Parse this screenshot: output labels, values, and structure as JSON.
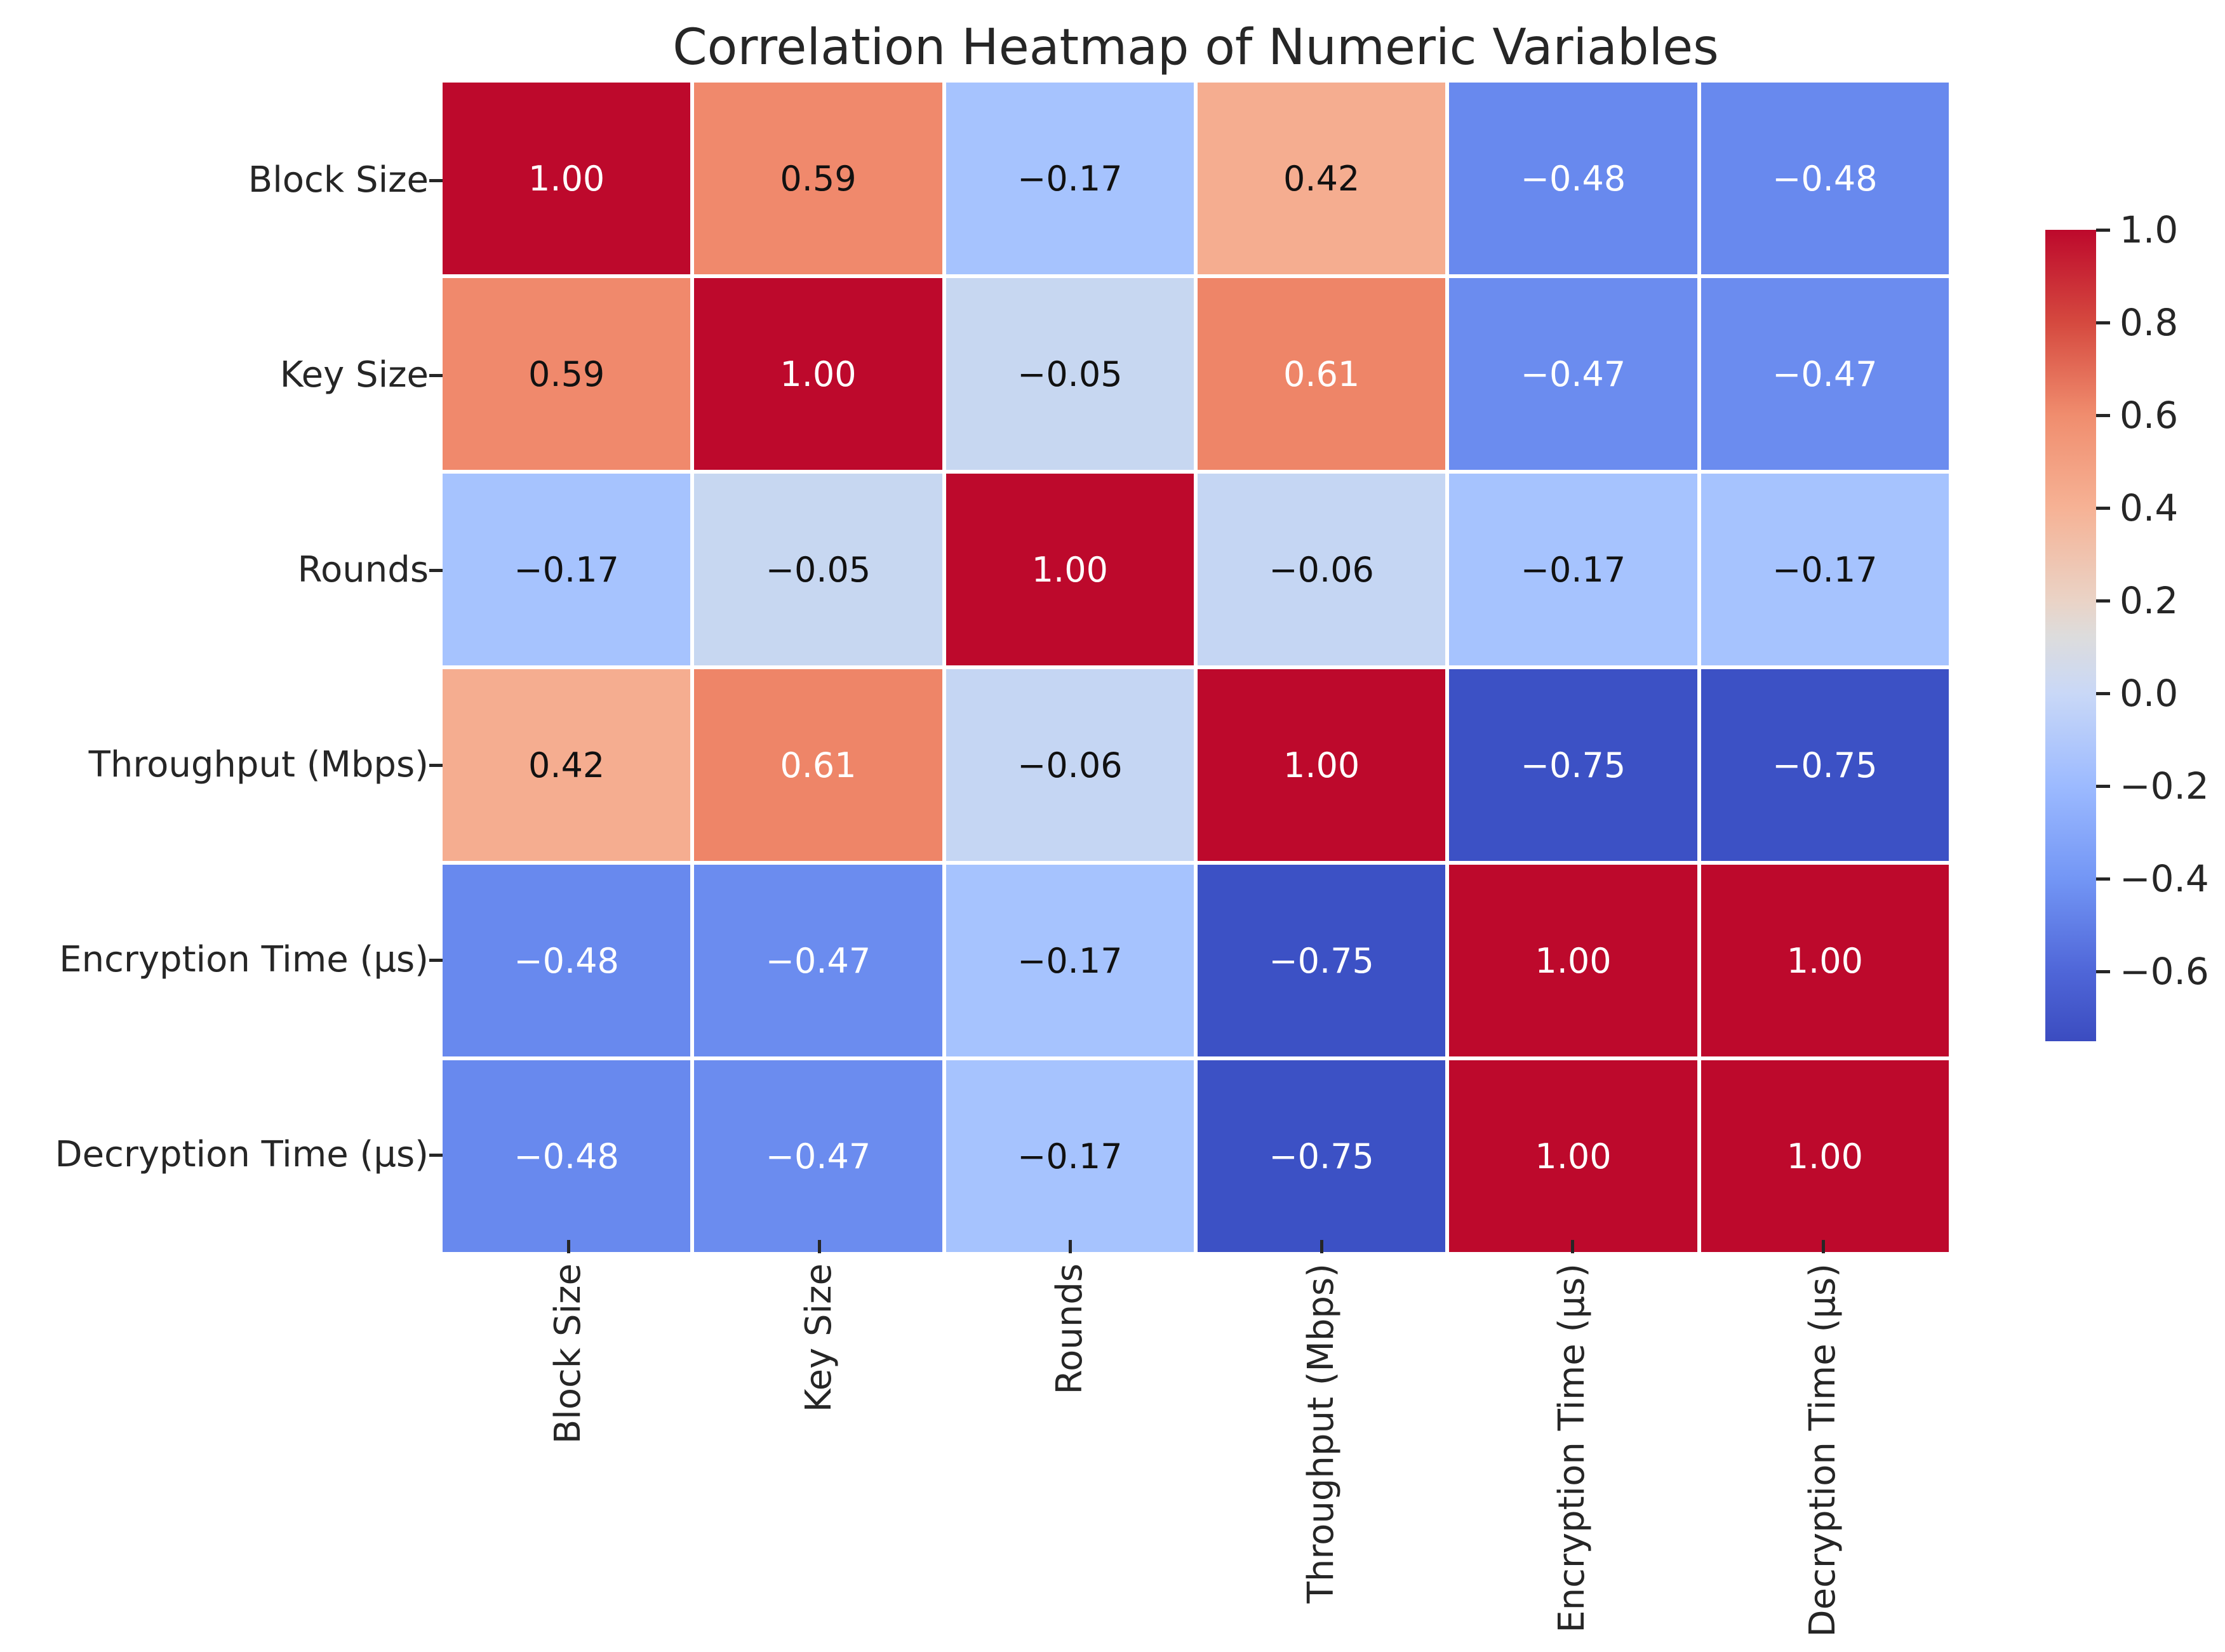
{
  "chart_data": {
    "type": "heatmap",
    "title": "Correlation Heatmap of Numeric Variables",
    "row_labels": [
      "Block Size",
      "Key Size",
      "Rounds",
      "Throughput (Mbps)",
      "Encryption Time (μs)",
      "Decryption Time (μs)"
    ],
    "col_labels": [
      "Block Size",
      "Key Size",
      "Rounds",
      "Throughput (Mbps)",
      "Encryption Time (μs)",
      "Decryption Time (μs)"
    ],
    "matrix": [
      [
        1.0,
        0.59,
        -0.17,
        0.42,
        -0.48,
        -0.48
      ],
      [
        0.59,
        1.0,
        -0.05,
        0.61,
        -0.47,
        -0.47
      ],
      [
        -0.17,
        -0.05,
        1.0,
        -0.06,
        -0.17,
        -0.17
      ],
      [
        0.42,
        0.61,
        -0.06,
        1.0,
        -0.75,
        -0.75
      ],
      [
        -0.48,
        -0.47,
        -0.17,
        -0.75,
        1.0,
        1.0
      ],
      [
        -0.48,
        -0.47,
        -0.17,
        -0.75,
        1.0,
        1.0
      ]
    ],
    "annotations": [
      [
        "1.00",
        "0.59",
        "−0.17",
        "0.42",
        "−0.48",
        "−0.48"
      ],
      [
        "0.59",
        "1.00",
        "−0.05",
        "0.61",
        "−0.47",
        "−0.47"
      ],
      [
        "−0.17",
        "−0.05",
        "1.00",
        "−0.06",
        "−0.17",
        "−0.17"
      ],
      [
        "0.42",
        "0.61",
        "−0.06",
        "1.00",
        "−0.75",
        "−0.75"
      ],
      [
        "−0.48",
        "−0.47",
        "−0.17",
        "−0.75",
        "1.00",
        "1.00"
      ],
      [
        "−0.48",
        "−0.47",
        "−0.17",
        "−0.75",
        "1.00",
        "1.00"
      ]
    ],
    "cell_colors": [
      [
        "#bd092c",
        "#f0896c",
        "#a6c3fe",
        "#f5ad90",
        "#6889ee",
        "#6889ee"
      ],
      [
        "#f0896c",
        "#bd092c",
        "#c7d7f1",
        "#ee8568",
        "#6b8cef",
        "#6b8cef"
      ],
      [
        "#a6c3fe",
        "#c7d7f1",
        "#bd092c",
        "#c5d6f3",
        "#a6c3fe",
        "#a6c3fe"
      ],
      [
        "#f5ad90",
        "#ee8568",
        "#c5d6f3",
        "#bd092c",
        "#3c51c5",
        "#3c51c5"
      ],
      [
        "#6889ee",
        "#6b8cef",
        "#a6c3fe",
        "#3c51c5",
        "#bd092c",
        "#bd092c"
      ],
      [
        "#6889ee",
        "#6b8cef",
        "#a6c3fe",
        "#3c51c5",
        "#bd092c",
        "#bd092c"
      ]
    ],
    "text_colors": [
      [
        "#ffffff",
        "#111111",
        "#111111",
        "#111111",
        "#ffffff",
        "#ffffff"
      ],
      [
        "#111111",
        "#ffffff",
        "#111111",
        "#ffffff",
        "#ffffff",
        "#ffffff"
      ],
      [
        "#111111",
        "#111111",
        "#ffffff",
        "#111111",
        "#111111",
        "#111111"
      ],
      [
        "#111111",
        "#ffffff",
        "#111111",
        "#ffffff",
        "#ffffff",
        "#ffffff"
      ],
      [
        "#ffffff",
        "#ffffff",
        "#111111",
        "#ffffff",
        "#ffffff",
        "#ffffff"
      ],
      [
        "#ffffff",
        "#ffffff",
        "#111111",
        "#ffffff",
        "#ffffff",
        "#ffffff"
      ]
    ],
    "colormap": "coolwarm",
    "value_range": {
      "vmin": -0.75,
      "vmax": 1.0
    },
    "axis_text_color": "#262626",
    "gridline_color": "#ffffff",
    "legend_position": "right",
    "colorbar": {
      "ticks": [
        {
          "label": "1.0",
          "value": 1.0
        },
        {
          "label": "0.8",
          "value": 0.8
        },
        {
          "label": "0.6",
          "value": 0.6
        },
        {
          "label": "0.4",
          "value": 0.4
        },
        {
          "label": "0.2",
          "value": 0.2
        },
        {
          "label": "0.0",
          "value": 0.0
        },
        {
          "label": "−0.2",
          "value": -0.2
        },
        {
          "label": "−0.4",
          "value": -0.4
        },
        {
          "label": "−0.6",
          "value": -0.6
        }
      ],
      "gradient": [
        {
          "value": 1.0,
          "color": "#bd092c"
        },
        {
          "value": 0.8,
          "color": "#d5493f"
        },
        {
          "value": 0.6,
          "color": "#f08d6e"
        },
        {
          "value": 0.4,
          "color": "#f6b295"
        },
        {
          "value": 0.2,
          "color": "#ead3c6"
        },
        {
          "value": 0.125,
          "color": "#dddcdc"
        },
        {
          "value": 0.0,
          "color": "#c9d8f7"
        },
        {
          "value": -0.2,
          "color": "#9cbaff"
        },
        {
          "value": -0.4,
          "color": "#7396f5"
        },
        {
          "value": -0.6,
          "color": "#4f66d8"
        },
        {
          "value": -0.75,
          "color": "#3b4cc0"
        }
      ]
    }
  }
}
